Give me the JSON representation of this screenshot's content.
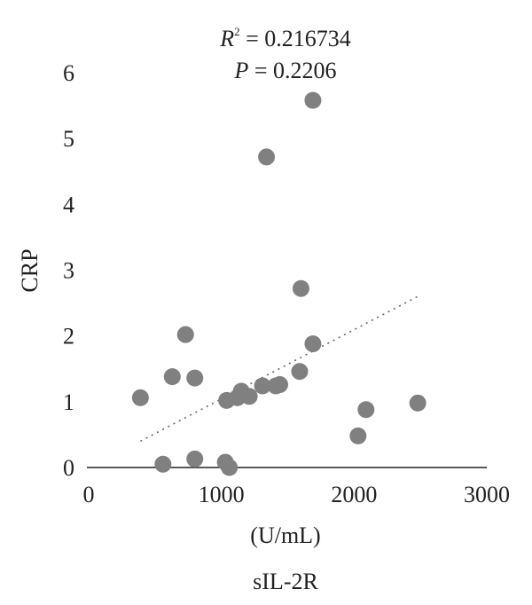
{
  "chart_data": {
    "type": "scatter",
    "annotation_r2": {
      "symbol": "R",
      "superscript": "2",
      "equals": " = 0.216734"
    },
    "annotation_p": {
      "symbol": "P",
      "equals": " = 0.2206"
    },
    "ylabel": "CRP",
    "xlabel": "(U/mL)",
    "xlabel2": "sIL-2R",
    "xlim": [
      0,
      3000
    ],
    "ylim": [
      0,
      6
    ],
    "x_ticks": [
      0,
      1000,
      2000,
      3000
    ],
    "y_ticks": [
      0,
      1,
      2,
      3,
      4,
      5,
      6
    ],
    "grid": false,
    "points": [
      {
        "x": 390,
        "y": 1.06
      },
      {
        "x": 560,
        "y": 0.05
      },
      {
        "x": 630,
        "y": 1.38
      },
      {
        "x": 730,
        "y": 2.02
      },
      {
        "x": 800,
        "y": 1.36
      },
      {
        "x": 800,
        "y": 0.13
      },
      {
        "x": 1030,
        "y": 0.08
      },
      {
        "x": 1040,
        "y": 1.02
      },
      {
        "x": 1060,
        "y": 0.0
      },
      {
        "x": 1120,
        "y": 1.06
      },
      {
        "x": 1150,
        "y": 1.16
      },
      {
        "x": 1210,
        "y": 1.08
      },
      {
        "x": 1310,
        "y": 1.24
      },
      {
        "x": 1340,
        "y": 4.72
      },
      {
        "x": 1410,
        "y": 1.24
      },
      {
        "x": 1440,
        "y": 1.26
      },
      {
        "x": 1590,
        "y": 1.46
      },
      {
        "x": 1600,
        "y": 2.72
      },
      {
        "x": 1690,
        "y": 1.88
      },
      {
        "x": 1690,
        "y": 5.58
      },
      {
        "x": 2030,
        "y": 0.48
      },
      {
        "x": 2090,
        "y": 0.88
      },
      {
        "x": 2480,
        "y": 0.98
      }
    ],
    "trendline": {
      "x": [
        390,
        2480
      ],
      "y": [
        0.4,
        2.6
      ],
      "style": "dotted"
    },
    "marker_color": "#808080",
    "axis_color": "#222222",
    "trend_color": "#666666"
  }
}
